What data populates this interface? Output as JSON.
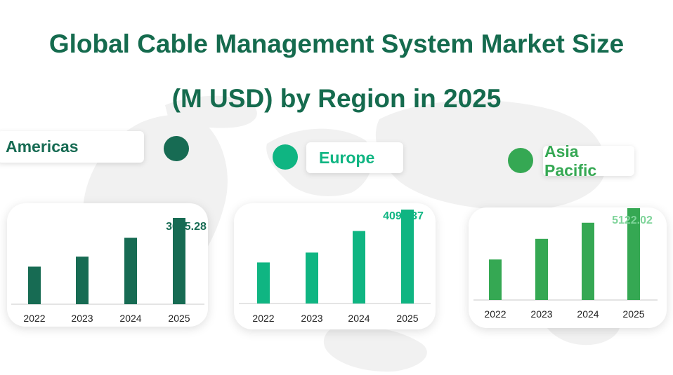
{
  "title": {
    "line1": "Global Cable Management System Market Size",
    "line2": "(M USD) by Region in 2025"
  },
  "colors": {
    "title": "#156b4e",
    "americas": "#176b53",
    "europe": "#0fb582",
    "asia_pacific": "#35a853",
    "asia_pacific_value": "#7fd49a",
    "axis": "#c8c8c8",
    "map": "#f1f1f1"
  },
  "regions": [
    {
      "key": "americas",
      "label": "Americas",
      "value_label": "3695.28"
    },
    {
      "key": "europe",
      "label": "Europe",
      "value_label": "4094.37"
    },
    {
      "key": "asia_pacific",
      "label": "Asia Pacific",
      "value_label": "5122.02"
    }
  ],
  "chart_data": [
    {
      "type": "bar",
      "name": "Americas",
      "categories": [
        "2022",
        "2023",
        "2024",
        "2025"
      ],
      "values": [
        1610,
        2040,
        2850,
        3695.28
      ],
      "ylim": [
        0,
        4000
      ],
      "grid": false,
      "data_labels": {
        "2025": "3695.28"
      }
    },
    {
      "type": "bar",
      "name": "Europe",
      "categories": [
        "2022",
        "2023",
        "2024",
        "2025"
      ],
      "values": [
        1790,
        2220,
        3160,
        4094.37
      ],
      "ylim": [
        0,
        4400
      ],
      "grid": false,
      "data_labels": {
        "2025": "4094.37"
      }
    },
    {
      "type": "bar",
      "name": "Asia Pacific",
      "categories": [
        "2022",
        "2023",
        "2024",
        "2025"
      ],
      "values": [
        2260,
        3410,
        4310,
        5122.02
      ],
      "ylim": [
        0,
        5600
      ],
      "grid": false,
      "data_labels": {
        "2025": "5122.02"
      }
    }
  ]
}
